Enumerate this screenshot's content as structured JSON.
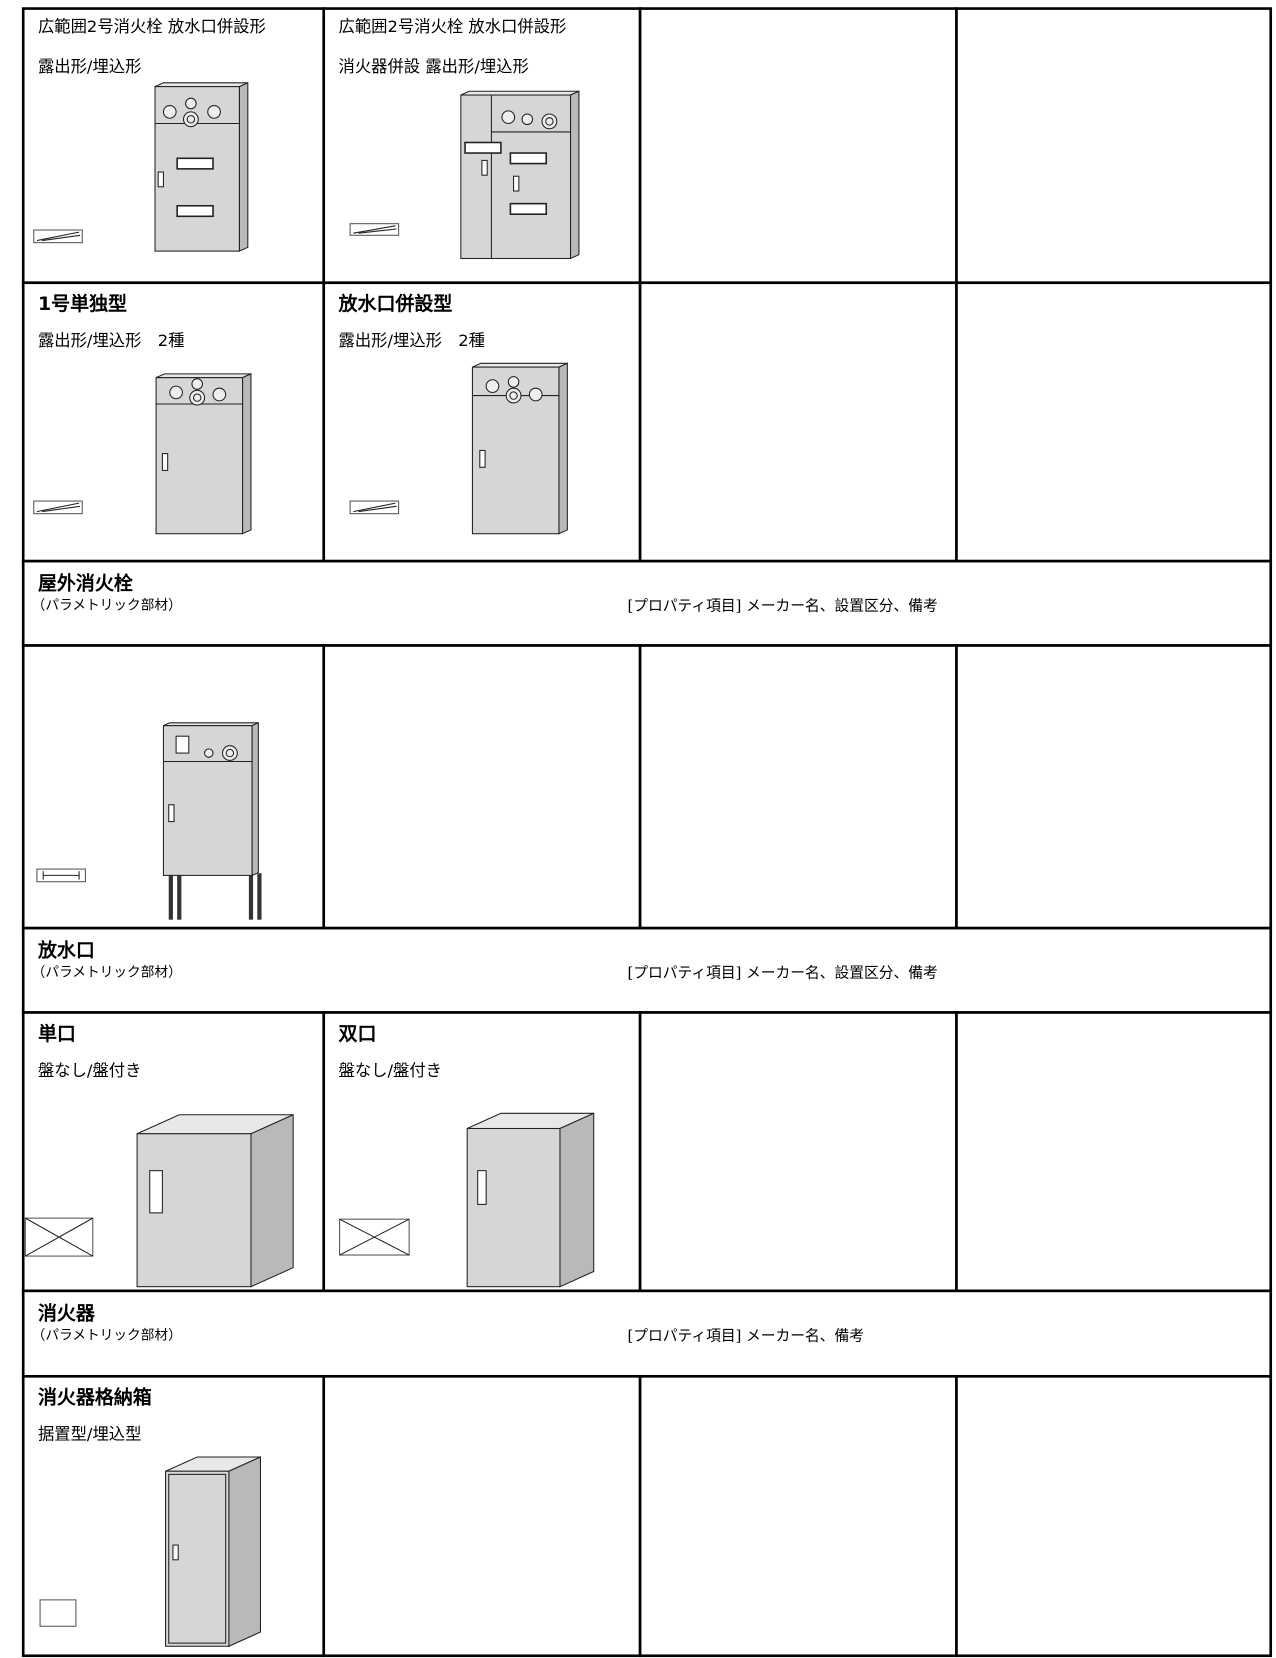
{
  "table": {
    "rows": [
      {
        "cells": [
          {
            "title": "広範囲2号消火栓 放水口併設形",
            "subtitle": "露出形/埋込形"
          },
          {
            "title": "広範囲2号消火栓 放水口併設形",
            "subtitle": "消火器併設 露出形/埋込形"
          }
        ]
      },
      {
        "cells": [
          {
            "title": "1号単独型",
            "subtitle": "露出形/埋込形　2種"
          },
          {
            "title": "放水口併設型",
            "subtitle": "露出形/埋込形　2種"
          }
        ]
      },
      {
        "title": "屋外消火栓",
        "subtitle": "（パラメトリック部材）",
        "properties": "[プロパティ項目] メーカー名、設置区分、備考"
      },
      {
        "title": "放水口",
        "subtitle": "（パラメトリック部材）",
        "properties": "[プロパティ項目] メーカー名、設置区分、備考"
      },
      {
        "cells": [
          {
            "title": "単口",
            "subtitle": "盤なし/盤付き"
          },
          {
            "title": "双口",
            "subtitle": "盤なし/盤付き"
          }
        ]
      },
      {
        "title": "消火器",
        "subtitle": "（パラメトリック部材）",
        "properties": "[プロパティ項目] メーカー名、備考"
      },
      {
        "cells": [
          {
            "title": "消火器格納箱",
            "subtitle": "据置型/埋込型"
          }
        ]
      }
    ]
  }
}
